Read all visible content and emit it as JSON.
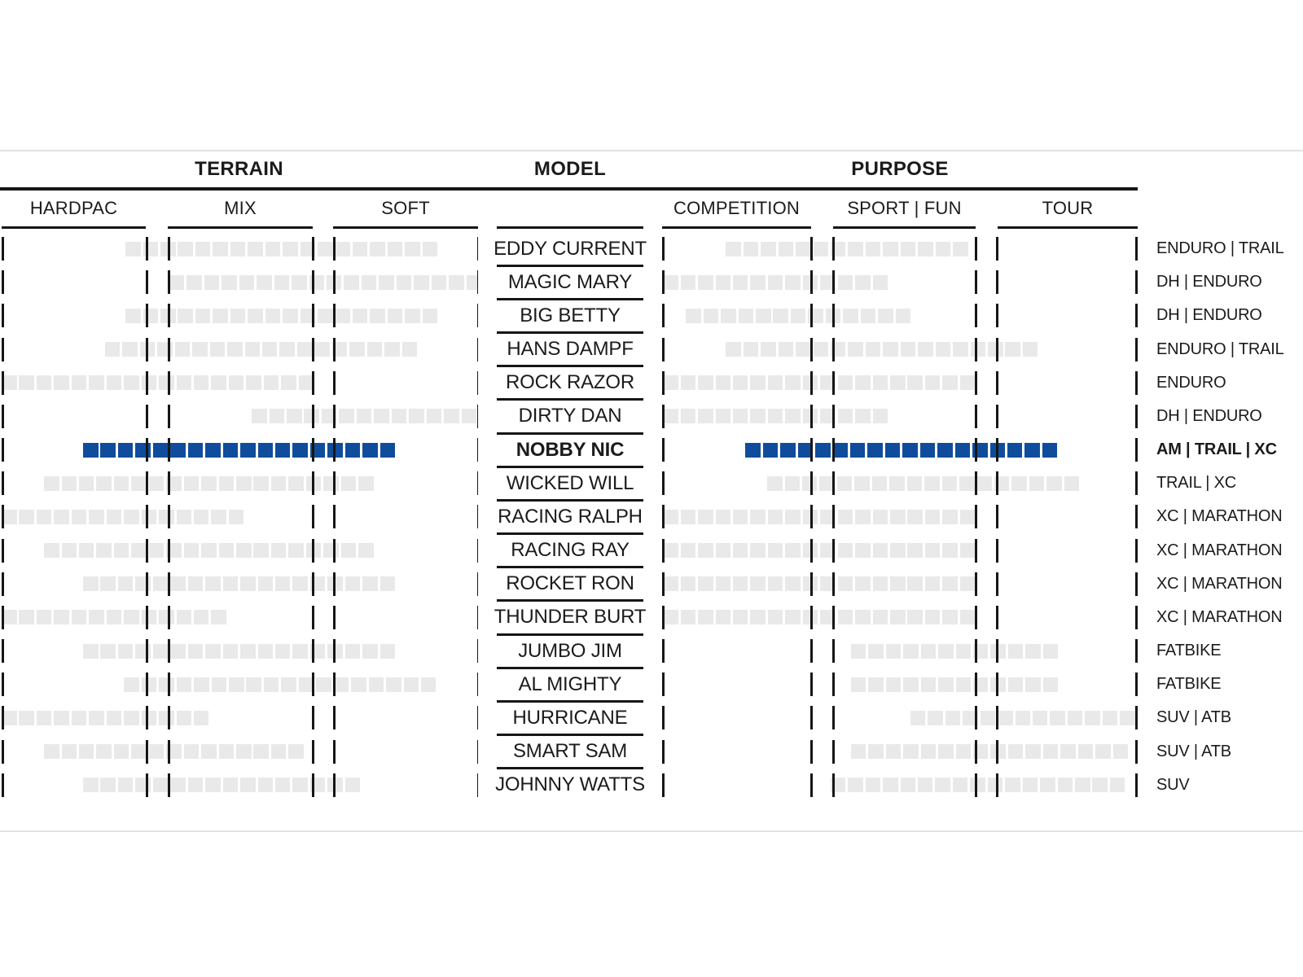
{
  "header": {
    "terrain": "TERRAIN",
    "model": "MODEL",
    "purpose": "PURPOSE",
    "terrain_columns": [
      "HARDPAC",
      "MIX",
      "SOFT"
    ],
    "purpose_columns": [
      "COMPETITION",
      "SPORT | FUN",
      "TOUR"
    ]
  },
  "colors": {
    "highlight_blue": "#0f4d9c",
    "bar_gray": "#e9e9e9",
    "line_dark": "#161616",
    "divider_gray": "#e3e3e3",
    "background": "#ffffff",
    "text": "#1b1b1b"
  },
  "chart_data": {
    "type": "bar",
    "subtype": "horizontal-range-squares",
    "title": "",
    "terrain_axis": [
      "HARDPAC",
      "MIX",
      "SOFT"
    ],
    "purpose_axis": [
      "COMPETITION",
      "SPORT | FUN",
      "TOUR"
    ],
    "units": "ranges are fractions of each section width, 0 = left edge, 1 = right edge",
    "rows": [
      {
        "model": "EDDY CURRENT",
        "category": "ENDURO | TRAIL",
        "terrain_range": [
          0.26,
          0.915
        ],
        "purpose_range": [
          0.134,
          0.645
        ],
        "highlighted": false
      },
      {
        "model": "MAGIC MARY",
        "category": "DH | ENDURO",
        "terrain_range": [
          0.352,
          0.995
        ],
        "purpose_range": [
          0.002,
          0.483
        ],
        "highlighted": false
      },
      {
        "model": "BIG BETTY",
        "category": "DH | ENDURO",
        "terrain_range": [
          0.26,
          0.915
        ],
        "purpose_range": [
          0.05,
          0.526
        ],
        "highlighted": false
      },
      {
        "model": "HANS DAMPF",
        "category": "ENDURO | TRAIL",
        "terrain_range": [
          0.217,
          0.874
        ],
        "purpose_range": [
          0.134,
          0.791
        ],
        "highlighted": false
      },
      {
        "model": "ROCK RAZOR",
        "category": "ENDURO",
        "terrain_range": [
          0.0,
          0.649
        ],
        "purpose_range": [
          0.002,
          0.645
        ],
        "highlighted": false
      },
      {
        "model": "DIRTY DAN",
        "category": "DH | ENDURO",
        "terrain_range": [
          0.525,
          0.995
        ],
        "purpose_range": [
          0.002,
          0.483
        ],
        "highlighted": false
      },
      {
        "model": "NOBBY NIC",
        "category": "AM | TRAIL | XC",
        "terrain_range": [
          0.171,
          0.829
        ],
        "purpose_range": [
          0.175,
          0.825
        ],
        "highlighted": true
      },
      {
        "model": "WICKED WILL",
        "category": "TRAIL | XC",
        "terrain_range": [
          0.089,
          0.781
        ],
        "purpose_range": [
          0.221,
          0.877
        ],
        "highlighted": false
      },
      {
        "model": "RACING RALPH",
        "category": "XC | MARATHON",
        "terrain_range": [
          0.0,
          0.518
        ],
        "purpose_range": [
          0.002,
          0.645
        ],
        "highlighted": false
      },
      {
        "model": "RACING RAY",
        "category": "XC | MARATHON",
        "terrain_range": [
          0.089,
          0.781
        ],
        "purpose_range": [
          0.002,
          0.645
        ],
        "highlighted": false
      },
      {
        "model": "ROCKET RON",
        "category": "XC | MARATHON",
        "terrain_range": [
          0.171,
          0.827
        ],
        "purpose_range": [
          0.002,
          0.645
        ],
        "highlighted": false
      },
      {
        "model": "THUNDER BURT",
        "category": "XC | MARATHON",
        "terrain_range": [
          0.0,
          0.479
        ],
        "purpose_range": [
          0.002,
          0.645
        ],
        "highlighted": false
      },
      {
        "model": "JUMBO JIM",
        "category": "FATBIKE",
        "terrain_range": [
          0.171,
          0.827
        ],
        "purpose_range": [
          0.397,
          0.825
        ],
        "highlighted": false
      },
      {
        "model": "AL MIGHTY",
        "category": "FATBIKE",
        "terrain_range": [
          0.257,
          0.915
        ],
        "purpose_range": [
          0.397,
          0.825
        ],
        "highlighted": false
      },
      {
        "model": "HURRICANE",
        "category": "SUV | ATB",
        "terrain_range": [
          0.0,
          0.436
        ],
        "purpose_range": [
          0.522,
          0.993
        ],
        "highlighted": false
      },
      {
        "model": "SMART SAM",
        "category": "SUV | ATB",
        "terrain_range": [
          0.089,
          0.646
        ],
        "purpose_range": [
          0.397,
          0.993
        ],
        "highlighted": false
      },
      {
        "model": "JOHNNY WATTS",
        "category": "SUV",
        "terrain_range": [
          0.171,
          0.735
        ],
        "purpose_range": [
          0.354,
          0.957
        ],
        "highlighted": false
      }
    ]
  }
}
